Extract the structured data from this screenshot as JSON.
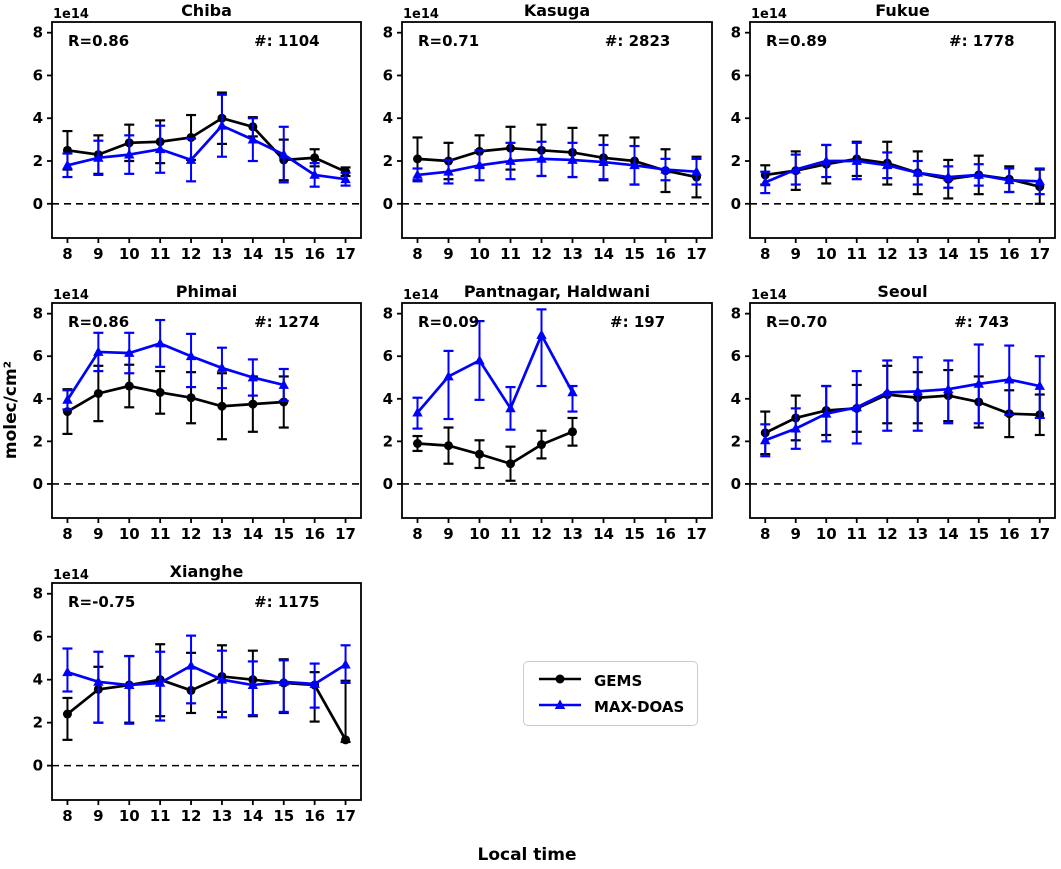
{
  "figure": {
    "ylabel": "molec/cm²",
    "xlabel": "Local time",
    "offset_text": "1e14",
    "colors": {
      "gems": "#000000",
      "maxdoas": "#0000ff",
      "background": "#ffffff",
      "legend_border": "#cccccc"
    },
    "legend": {
      "position": "lower-center",
      "items": [
        {
          "label": "GEMS",
          "color": "#000000",
          "marker": "circle"
        },
        {
          "label": "MAX-DOAS",
          "color": "#0000ff",
          "marker": "triangle"
        }
      ]
    }
  },
  "chart_data": [
    {
      "type": "line",
      "title": "Chiba",
      "annotations": {
        "r": "R=0.86",
        "count": "#: 1104"
      },
      "x": [
        8,
        9,
        10,
        11,
        12,
        13,
        14,
        15,
        16,
        17
      ],
      "xticks": [
        8,
        9,
        10,
        11,
        12,
        13,
        14,
        15,
        16,
        17
      ],
      "yticks": [
        0,
        2,
        4,
        6,
        8
      ],
      "xlim": [
        7.5,
        17.5
      ],
      "ylim": [
        -1.6,
        8.5
      ],
      "zero_line": true,
      "series": [
        {
          "name": "GEMS",
          "color": "#000000",
          "marker": "circle",
          "values": [
            2.5,
            2.3,
            2.85,
            2.9,
            3.1,
            4.0,
            3.6,
            2.05,
            2.15,
            1.5
          ],
          "err_lo": [
            0.9,
            0.9,
            0.85,
            1.0,
            1.05,
            1.2,
            0.45,
            0.95,
            0.4,
            0.2
          ],
          "err_hi": [
            0.9,
            0.9,
            0.85,
            1.0,
            1.05,
            1.2,
            0.45,
            0.95,
            0.4,
            0.2
          ]
        },
        {
          "name": "MAX-DOAS",
          "color": "#0000ff",
          "marker": "triangle",
          "values": [
            1.8,
            2.15,
            2.3,
            2.55,
            2.05,
            3.65,
            3.0,
            2.3,
            1.35,
            1.15
          ],
          "err_lo": [
            0.55,
            0.8,
            0.9,
            1.1,
            1.0,
            1.45,
            1.0,
            1.3,
            0.55,
            0.3
          ],
          "err_hi": [
            0.55,
            0.8,
            0.9,
            1.1,
            1.0,
            1.45,
            1.0,
            1.3,
            0.55,
            0.3
          ]
        }
      ]
    },
    {
      "type": "line",
      "title": "Kasuga",
      "annotations": {
        "r": "R=0.71",
        "count": "#: 2823"
      },
      "x": [
        8,
        9,
        10,
        11,
        12,
        13,
        14,
        15,
        16,
        17
      ],
      "xticks": [
        8,
        9,
        10,
        11,
        12,
        13,
        14,
        15,
        16,
        17
      ],
      "yticks": [
        0,
        2,
        4,
        6,
        8
      ],
      "xlim": [
        7.5,
        17.5
      ],
      "ylim": [
        -1.6,
        8.5
      ],
      "zero_line": true,
      "series": [
        {
          "name": "GEMS",
          "color": "#000000",
          "marker": "circle",
          "values": [
            2.1,
            2.0,
            2.45,
            2.6,
            2.5,
            2.4,
            2.15,
            2.0,
            1.55,
            1.25
          ],
          "err_lo": [
            1.0,
            0.85,
            0.75,
            1.0,
            1.2,
            1.15,
            1.05,
            1.1,
            1.0,
            0.95
          ],
          "err_hi": [
            1.0,
            0.85,
            0.75,
            1.0,
            1.2,
            1.15,
            1.05,
            1.1,
            1.0,
            0.95
          ]
        },
        {
          "name": "MAX-DOAS",
          "color": "#0000ff",
          "marker": "triangle",
          "values": [
            1.35,
            1.5,
            1.8,
            2.0,
            2.1,
            2.05,
            1.95,
            1.8,
            1.6,
            1.5
          ],
          "err_lo": [
            0.3,
            0.55,
            0.7,
            0.85,
            0.8,
            0.8,
            0.8,
            0.9,
            0.5,
            0.6
          ],
          "err_hi": [
            0.3,
            0.55,
            0.7,
            0.85,
            0.8,
            0.8,
            0.8,
            0.9,
            0.5,
            0.6
          ]
        }
      ]
    },
    {
      "type": "line",
      "title": "Fukue",
      "annotations": {
        "r": "R=0.89",
        "count": "#: 1778"
      },
      "x": [
        8,
        9,
        10,
        11,
        12,
        13,
        14,
        15,
        16,
        17
      ],
      "xticks": [
        8,
        9,
        10,
        11,
        12,
        13,
        14,
        15,
        16,
        17
      ],
      "yticks": [
        0,
        2,
        4,
        6,
        8
      ],
      "xlim": [
        7.5,
        17.5
      ],
      "ylim": [
        -1.6,
        8.5
      ],
      "zero_line": true,
      "series": [
        {
          "name": "GEMS",
          "color": "#000000",
          "marker": "circle",
          "values": [
            1.35,
            1.55,
            1.85,
            2.1,
            1.9,
            1.45,
            1.15,
            1.35,
            1.15,
            0.8
          ],
          "err_lo": [
            0.45,
            0.9,
            0.9,
            0.8,
            1.0,
            1.0,
            0.9,
            0.9,
            0.6,
            0.8
          ],
          "err_hi": [
            0.45,
            0.9,
            0.9,
            0.8,
            1.0,
            1.0,
            0.9,
            0.9,
            0.6,
            0.8
          ]
        },
        {
          "name": "MAX-DOAS",
          "color": "#0000ff",
          "marker": "triangle",
          "values": [
            1.0,
            1.6,
            2.0,
            2.0,
            1.8,
            1.45,
            1.25,
            1.35,
            1.1,
            1.05
          ],
          "err_lo": [
            0.5,
            0.7,
            0.75,
            0.85,
            0.6,
            0.55,
            0.5,
            0.5,
            0.55,
            0.6
          ],
          "err_hi": [
            0.5,
            0.7,
            0.75,
            0.85,
            0.6,
            0.55,
            0.5,
            0.5,
            0.55,
            0.6
          ]
        }
      ]
    },
    {
      "type": "line",
      "title": "Phimai",
      "annotations": {
        "r": "R=0.86",
        "count": "#: 1274"
      },
      "x": [
        8,
        9,
        10,
        11,
        12,
        13,
        14,
        15
      ],
      "xticks": [
        8,
        9,
        10,
        11,
        12,
        13,
        14,
        15,
        16,
        17
      ],
      "yticks": [
        0,
        2,
        4,
        6,
        8
      ],
      "xlim": [
        7.5,
        17.5
      ],
      "ylim": [
        -1.6,
        8.5
      ],
      "zero_line": true,
      "series": [
        {
          "name": "GEMS",
          "color": "#000000",
          "marker": "circle",
          "values": [
            3.4,
            4.25,
            4.6,
            4.3,
            4.05,
            3.65,
            3.75,
            3.85
          ],
          "err_lo": [
            1.05,
            1.3,
            1.0,
            1.0,
            1.2,
            1.55,
            1.3,
            1.2
          ],
          "err_hi": [
            1.05,
            1.3,
            1.0,
            1.0,
            1.2,
            1.55,
            1.3,
            1.2
          ]
        },
        {
          "name": "MAX-DOAS",
          "color": "#0000ff",
          "marker": "triangle",
          "values": [
            3.95,
            6.2,
            6.15,
            6.6,
            6.0,
            5.45,
            5.0,
            4.65
          ],
          "err_lo": [
            0.45,
            0.9,
            0.95,
            1.1,
            1.45,
            0.95,
            0.85,
            0.75
          ],
          "err_hi": [
            0.45,
            0.9,
            0.95,
            1.1,
            1.05,
            0.95,
            0.85,
            0.75
          ]
        }
      ]
    },
    {
      "type": "line",
      "title": "Pantnagar, Haldwani",
      "annotations": {
        "r": "R=0.09",
        "count": "#: 197"
      },
      "x": [
        8,
        9,
        10,
        11,
        12,
        13
      ],
      "xticks": [
        8,
        9,
        10,
        11,
        12,
        13,
        14,
        15,
        16,
        17
      ],
      "yticks": [
        0,
        2,
        4,
        6,
        8
      ],
      "xlim": [
        7.5,
        17.5
      ],
      "ylim": [
        -1.6,
        8.5
      ],
      "zero_line": true,
      "series": [
        {
          "name": "GEMS",
          "color": "#000000",
          "marker": "circle",
          "values": [
            1.9,
            1.8,
            1.4,
            0.95,
            1.85,
            2.45
          ],
          "err_lo": [
            0.35,
            0.85,
            0.65,
            0.8,
            0.65,
            0.65
          ],
          "err_hi": [
            0.35,
            0.85,
            0.65,
            0.8,
            0.65,
            0.65
          ]
        },
        {
          "name": "MAX-DOAS",
          "color": "#0000ff",
          "marker": "triangle",
          "values": [
            3.35,
            5.05,
            5.8,
            3.55,
            7.0,
            4.3
          ],
          "err_lo": [
            0.75,
            2.0,
            1.85,
            1.0,
            2.4,
            0.9
          ],
          "err_hi": [
            0.7,
            1.2,
            1.85,
            1.0,
            1.2,
            0.3
          ]
        }
      ]
    },
    {
      "type": "line",
      "title": "Seoul",
      "annotations": {
        "r": "R=0.70",
        "count": "#: 743"
      },
      "x": [
        8,
        9,
        10,
        11,
        12,
        13,
        14,
        15,
        16,
        17
      ],
      "xticks": [
        8,
        9,
        10,
        11,
        12,
        13,
        14,
        15,
        16,
        17
      ],
      "yticks": [
        0,
        2,
        4,
        6,
        8
      ],
      "xlim": [
        7.5,
        17.5
      ],
      "ylim": [
        -1.6,
        8.5
      ],
      "zero_line": true,
      "series": [
        {
          "name": "GEMS",
          "color": "#000000",
          "marker": "circle",
          "values": [
            2.4,
            3.1,
            3.45,
            3.55,
            4.2,
            4.05,
            4.15,
            3.85,
            3.3,
            3.25
          ],
          "err_lo": [
            1.0,
            1.05,
            1.15,
            1.1,
            1.35,
            1.2,
            1.2,
            1.2,
            1.1,
            0.95
          ],
          "err_hi": [
            1.0,
            1.05,
            1.15,
            1.1,
            1.35,
            1.2,
            1.2,
            1.2,
            1.1,
            0.95
          ]
        },
        {
          "name": "MAX-DOAS",
          "color": "#0000ff",
          "marker": "triangle",
          "values": [
            2.05,
            2.6,
            3.3,
            3.6,
            4.3,
            4.35,
            4.45,
            4.7,
            4.9,
            4.6
          ],
          "err_lo": [
            0.75,
            0.95,
            1.3,
            1.7,
            1.8,
            1.85,
            1.6,
            1.85,
            1.65,
            1.5
          ],
          "err_hi": [
            0.75,
            0.95,
            1.3,
            1.7,
            1.5,
            1.6,
            1.35,
            1.85,
            1.6,
            1.4
          ]
        }
      ]
    },
    {
      "type": "line",
      "title": "Xianghe",
      "annotations": {
        "r": "R=-0.75",
        "count": "#: 1175"
      },
      "x": [
        8,
        9,
        10,
        11,
        12,
        13,
        14,
        15,
        16,
        17
      ],
      "xticks": [
        8,
        9,
        10,
        11,
        12,
        13,
        14,
        15,
        16,
        17
      ],
      "yticks": [
        0,
        2,
        4,
        6,
        8
      ],
      "xlim": [
        7.5,
        17.5
      ],
      "ylim": [
        -1.6,
        8.5
      ],
      "zero_line": true,
      "series": [
        {
          "name": "GEMS",
          "color": "#000000",
          "marker": "circle",
          "values": [
            2.4,
            3.55,
            3.75,
            4.0,
            3.5,
            4.15,
            4.0,
            3.85,
            3.75,
            1.2
          ],
          "err_lo": [
            1.2,
            1.55,
            1.75,
            1.7,
            1.05,
            1.65,
            1.7,
            1.4,
            1.7,
            0.1
          ],
          "err_hi": [
            0.75,
            1.05,
            1.35,
            1.65,
            1.75,
            1.45,
            1.35,
            1.1,
            0.6,
            2.75
          ]
        },
        {
          "name": "MAX-DOAS",
          "color": "#0000ff",
          "marker": "triangle",
          "values": [
            4.35,
            3.9,
            3.75,
            3.85,
            4.65,
            4.0,
            3.75,
            3.9,
            3.8,
            4.7
          ],
          "err_lo": [
            0.9,
            1.9,
            1.8,
            1.75,
            1.75,
            1.75,
            1.4,
            1.4,
            1.1,
            0.85
          ],
          "err_hi": [
            1.1,
            1.4,
            1.35,
            1.45,
            1.4,
            1.35,
            1.1,
            1.0,
            0.95,
            0.9
          ]
        }
      ]
    }
  ]
}
